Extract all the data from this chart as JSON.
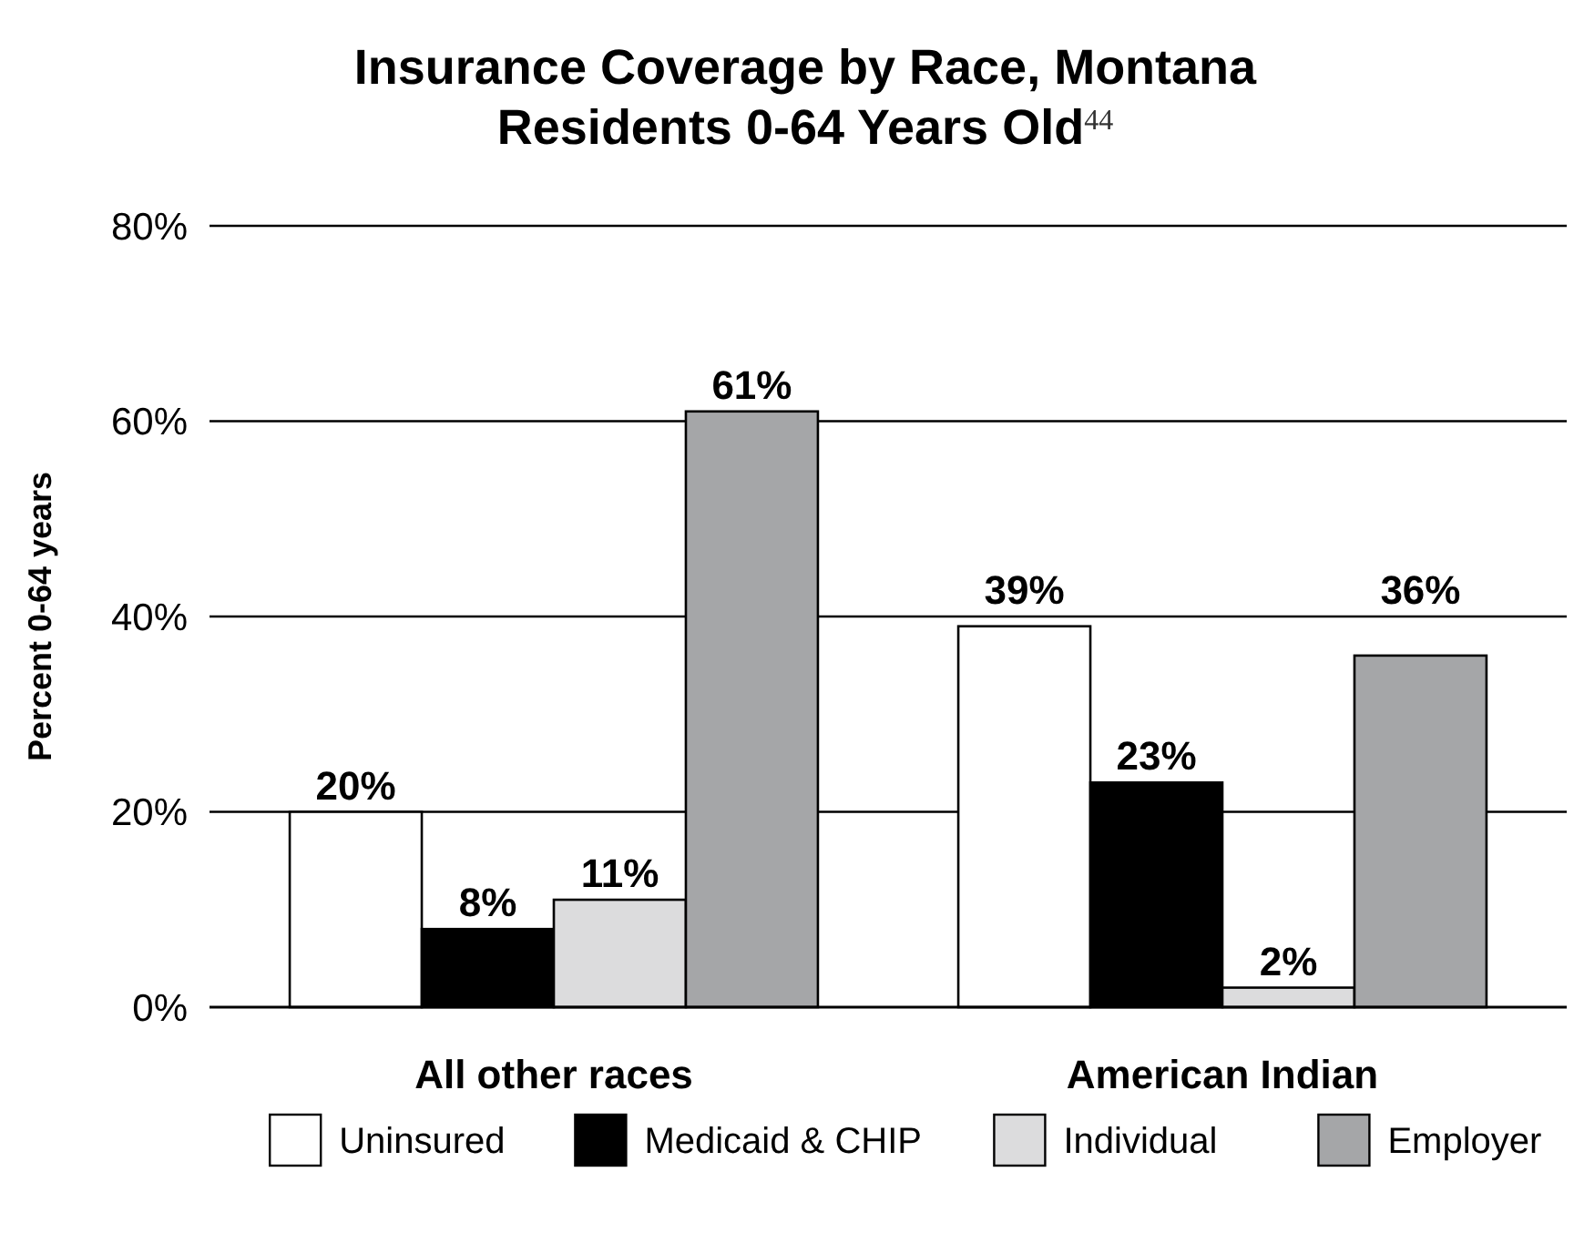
{
  "chart_data": {
    "type": "bar",
    "title": "Insurance Coverage by Race, Montana\nResidents 0-64 Years Old$^{44}$",
    "ylabel": "Percent 0-64 years",
    "categories": [
      "All other races",
      "American Indian"
    ],
    "series": [
      {
        "name": "Uninsured",
        "color": "#ffffff",
        "values": [
          20,
          39
        ],
        "value_labels": [
          "20%",
          "39%"
        ]
      },
      {
        "name": "Medicaid & CHIP",
        "color": "#000000",
        "values": [
          8,
          23
        ],
        "value_labels": [
          "8%",
          "23%"
        ]
      },
      {
        "name": "Individual",
        "color": "#dcdcdd",
        "values": [
          11,
          2
        ],
        "value_labels": [
          "11%",
          "2%"
        ]
      },
      {
        "name": "Employer",
        "color": "#a5a6a8",
        "values": [
          61,
          36
        ],
        "value_labels": [
          "61%",
          "36%"
        ]
      }
    ],
    "ylim": [
      0,
      80
    ],
    "yticks": [
      {
        "value": 0,
        "label": "0%"
      },
      {
        "value": 20,
        "label": "20%"
      },
      {
        "value": 40,
        "label": "40%"
      },
      {
        "value": 60,
        "label": "60%"
      },
      {
        "value": 80,
        "label": "80%"
      }
    ],
    "grid": "y",
    "legend": "bottom"
  }
}
